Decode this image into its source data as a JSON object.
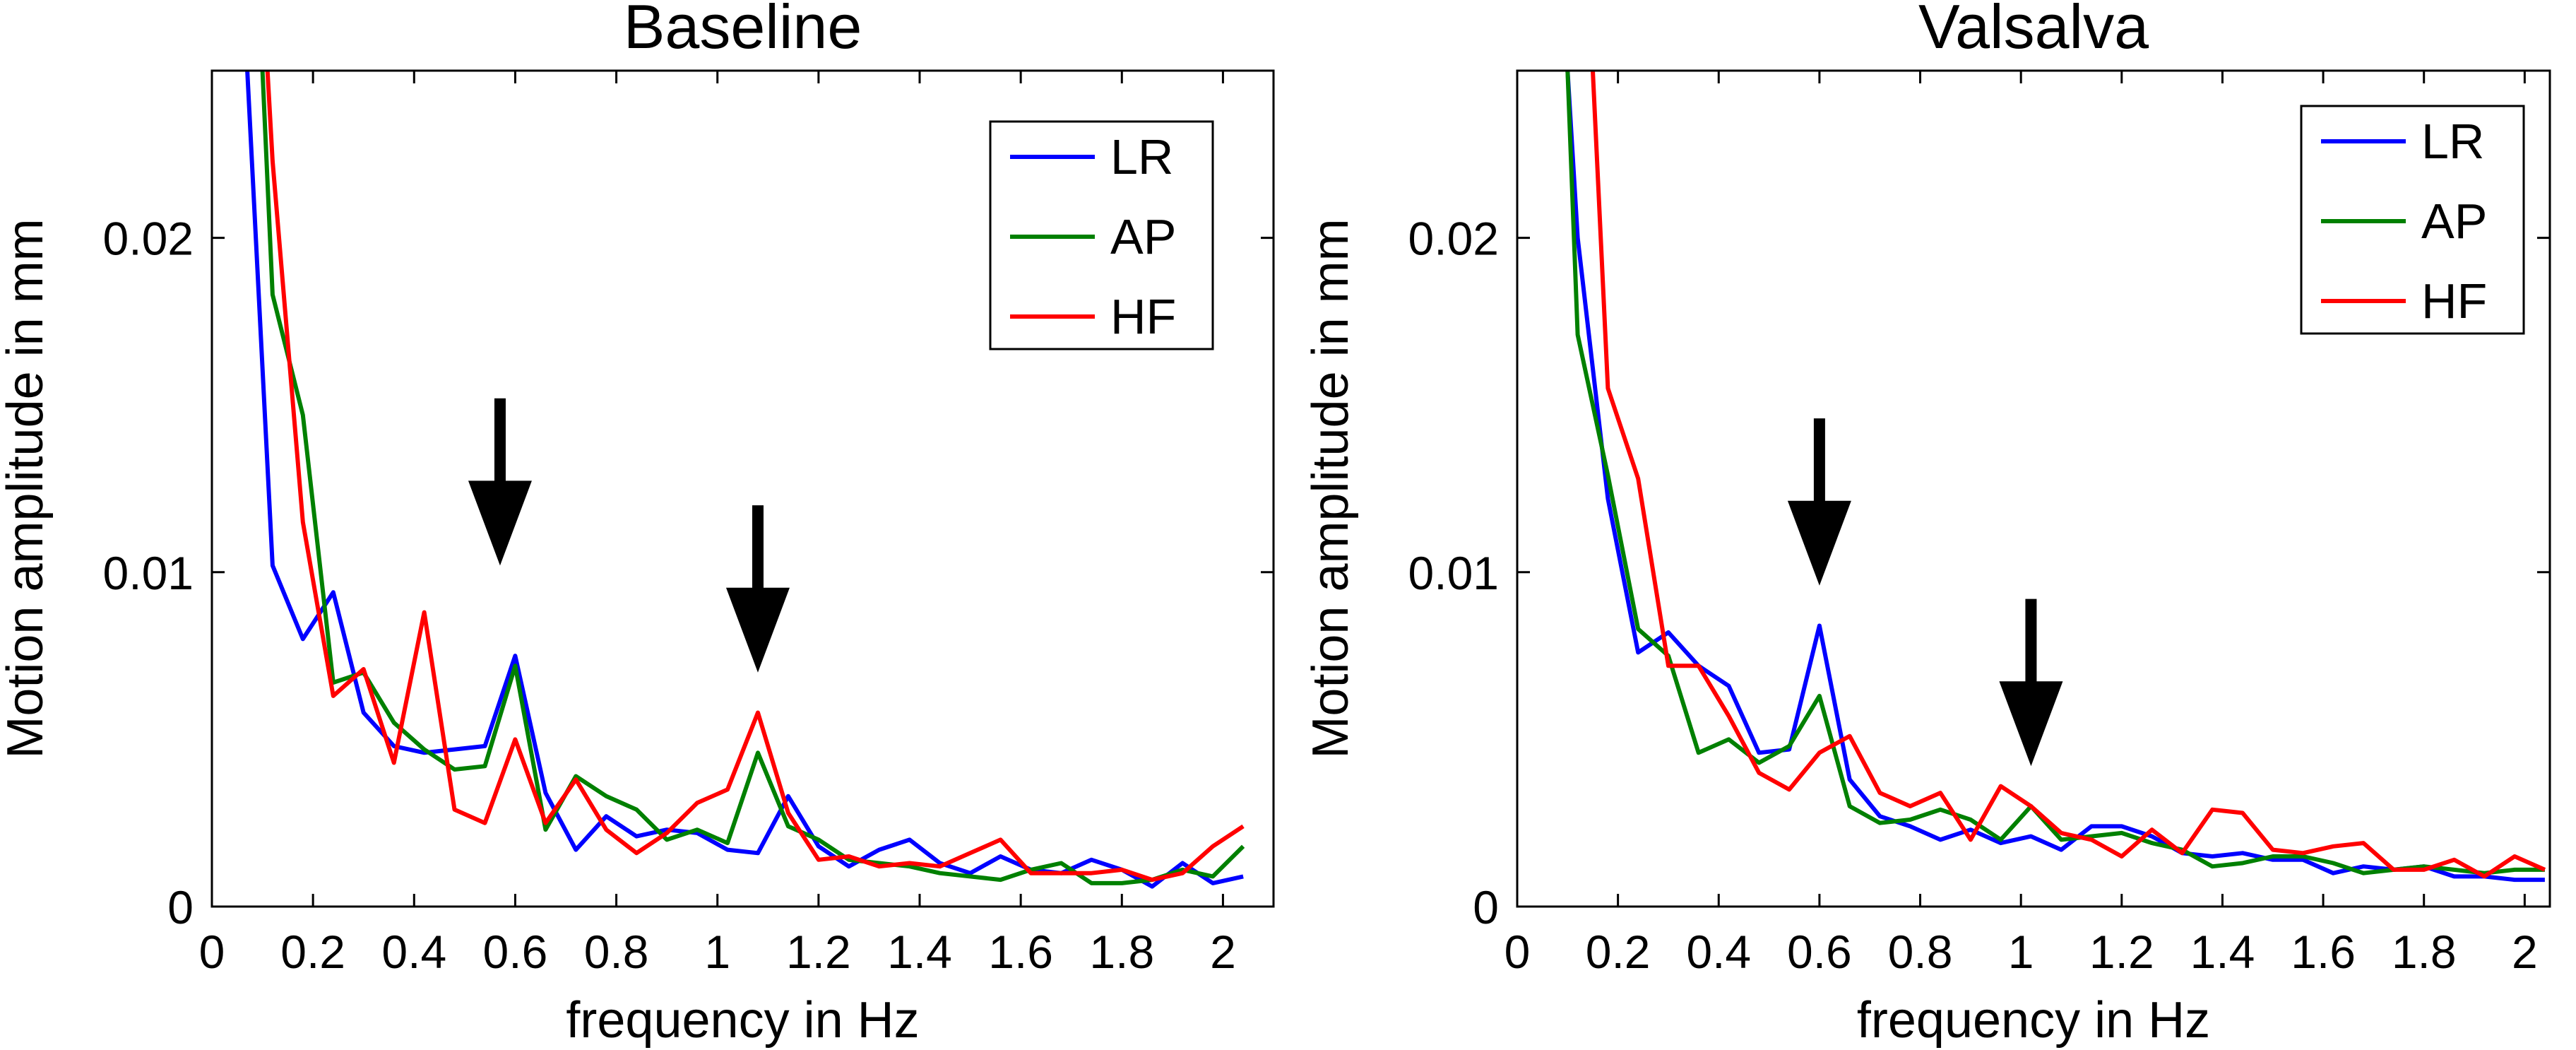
{
  "colors": {
    "LR": "#0000ff",
    "AP": "#008000",
    "HF": "#ff0000",
    "axis": "#000000",
    "arrow": "#000000"
  },
  "chart_data": [
    {
      "type": "line",
      "title": "Baseline",
      "xlabel": "frequency in Hz",
      "ylabel": "Motion amplitude in mm",
      "xlim": [
        0,
        2.1
      ],
      "ylim": [
        0,
        0.025
      ],
      "xticks": [
        0,
        0.2,
        0.4,
        0.6,
        0.8,
        1,
        1.2,
        1.4,
        1.6,
        1.8,
        2
      ],
      "xtick_labels": [
        "0",
        "0.2",
        "0.4",
        "0.6",
        "0.8",
        "1",
        "1.2",
        "1.4",
        "1.6",
        "1.8",
        "2"
      ],
      "yticks": [
        0,
        0.01,
        0.02
      ],
      "ytick_labels": [
        "0",
        "0.01",
        "0.02"
      ],
      "grid": false,
      "legend": "top-right",
      "arrows": [
        {
          "x": 0.57,
          "y_top": 0.0152,
          "y_tip": 0.0102
        },
        {
          "x": 1.08,
          "y_top": 0.012,
          "y_tip": 0.007
        }
      ],
      "series": [
        {
          "name": "LR",
          "x": [
            0.07,
            0.12,
            0.18,
            0.24,
            0.3,
            0.36,
            0.42,
            0.48,
            0.54,
            0.6,
            0.66,
            0.72,
            0.78,
            0.84,
            0.9,
            0.96,
            1.02,
            1.08,
            1.14,
            1.2,
            1.26,
            1.32,
            1.38,
            1.44,
            1.5,
            1.56,
            1.62,
            1.68,
            1.74,
            1.8,
            1.86,
            1.92,
            1.98,
            2.04
          ],
          "values": [
            0.025,
            0.0102,
            0.008,
            0.0094,
            0.0058,
            0.0048,
            0.0046,
            0.0047,
            0.0048,
            0.0075,
            0.0034,
            0.0017,
            0.0027,
            0.0021,
            0.0023,
            0.0022,
            0.0017,
            0.0016,
            0.0033,
            0.0018,
            0.0012,
            0.0017,
            0.002,
            0.0013,
            0.001,
            0.0015,
            0.0011,
            0.001,
            0.0014,
            0.0011,
            0.0006,
            0.0013,
            0.0007,
            0.0009
          ]
        },
        {
          "name": "AP",
          "x": [
            0.1,
            0.12,
            0.18,
            0.24,
            0.3,
            0.36,
            0.42,
            0.48,
            0.54,
            0.6,
            0.66,
            0.72,
            0.78,
            0.84,
            0.9,
            0.96,
            1.02,
            1.08,
            1.14,
            1.2,
            1.26,
            1.32,
            1.38,
            1.44,
            1.5,
            1.56,
            1.62,
            1.68,
            1.74,
            1.8,
            1.86,
            1.92,
            1.98,
            2.04
          ],
          "values": [
            0.025,
            0.0183,
            0.0147,
            0.0067,
            0.007,
            0.0055,
            0.0047,
            0.0041,
            0.0042,
            0.0072,
            0.0023,
            0.0039,
            0.0033,
            0.0029,
            0.002,
            0.0023,
            0.0019,
            0.0046,
            0.0024,
            0.002,
            0.0014,
            0.0013,
            0.0012,
            0.001,
            0.0009,
            0.0008,
            0.0011,
            0.0013,
            0.0007,
            0.0007,
            0.0008,
            0.0011,
            0.0009,
            0.0018
          ]
        },
        {
          "name": "HF",
          "x": [
            0.11,
            0.12,
            0.18,
            0.24,
            0.3,
            0.36,
            0.42,
            0.48,
            0.54,
            0.6,
            0.66,
            0.72,
            0.78,
            0.84,
            0.9,
            0.96,
            1.02,
            1.08,
            1.14,
            1.2,
            1.26,
            1.32,
            1.38,
            1.44,
            1.5,
            1.56,
            1.62,
            1.68,
            1.74,
            1.8,
            1.86,
            1.92,
            1.98,
            2.04
          ],
          "values": [
            0.025,
            0.0223,
            0.0115,
            0.0063,
            0.0071,
            0.0043,
            0.0088,
            0.0029,
            0.0025,
            0.005,
            0.0025,
            0.0038,
            0.0023,
            0.0016,
            0.0022,
            0.0031,
            0.0035,
            0.0058,
            0.0028,
            0.0014,
            0.0015,
            0.0012,
            0.0013,
            0.0012,
            0.0016,
            0.002,
            0.001,
            0.001,
            0.001,
            0.0011,
            0.0008,
            0.001,
            0.0018,
            0.0024
          ]
        }
      ]
    },
    {
      "type": "line",
      "title": "Valsalva",
      "xlabel": "frequency in Hz",
      "ylabel": "Motion amplitude in mm",
      "xlim": [
        0,
        2.05
      ],
      "ylim": [
        0,
        0.025
      ],
      "xticks": [
        0,
        0.2,
        0.4,
        0.6,
        0.8,
        1,
        1.2,
        1.4,
        1.6,
        1.8,
        2
      ],
      "xtick_labels": [
        "0",
        "0.2",
        "0.4",
        "0.6",
        "0.8",
        "1",
        "1.2",
        "1.4",
        "1.6",
        "1.8",
        "2"
      ],
      "yticks": [
        0,
        0.01,
        0.02
      ],
      "ytick_labels": [
        "0",
        "0.01",
        "0.02"
      ],
      "grid": false,
      "legend": "top-right",
      "arrows": [
        {
          "x": 0.6,
          "y_top": 0.0146,
          "y_tip": 0.0096
        },
        {
          "x": 1.02,
          "y_top": 0.0092,
          "y_tip": 0.0042
        }
      ],
      "series": [
        {
          "name": "LR",
          "x": [
            0.1,
            0.12,
            0.18,
            0.24,
            0.3,
            0.36,
            0.42,
            0.48,
            0.54,
            0.6,
            0.66,
            0.72,
            0.78,
            0.84,
            0.9,
            0.96,
            1.02,
            1.08,
            1.14,
            1.2,
            1.26,
            1.32,
            1.38,
            1.44,
            1.5,
            1.56,
            1.62,
            1.68,
            1.74,
            1.8,
            1.86,
            1.92,
            1.98,
            2.04
          ],
          "values": [
            0.025,
            0.02,
            0.0122,
            0.0076,
            0.0082,
            0.0072,
            0.0066,
            0.0046,
            0.0047,
            0.0084,
            0.0038,
            0.0027,
            0.0024,
            0.002,
            0.0023,
            0.0019,
            0.0021,
            0.0017,
            0.0024,
            0.0024,
            0.0021,
            0.0016,
            0.0015,
            0.0016,
            0.0014,
            0.0014,
            0.001,
            0.0012,
            0.0011,
            0.0012,
            0.0009,
            0.0009,
            0.0008,
            0.0008
          ]
        },
        {
          "name": "AP",
          "x": [
            0.1,
            0.12,
            0.18,
            0.24,
            0.3,
            0.36,
            0.42,
            0.48,
            0.54,
            0.6,
            0.66,
            0.72,
            0.78,
            0.84,
            0.9,
            0.96,
            1.02,
            1.08,
            1.14,
            1.2,
            1.26,
            1.32,
            1.38,
            1.44,
            1.5,
            1.56,
            1.62,
            1.68,
            1.74,
            1.8,
            1.86,
            1.92,
            1.98,
            2.04
          ],
          "values": [
            0.025,
            0.0171,
            0.0129,
            0.0083,
            0.0075,
            0.0046,
            0.005,
            0.0043,
            0.0048,
            0.0063,
            0.003,
            0.0025,
            0.0026,
            0.0029,
            0.0026,
            0.002,
            0.003,
            0.002,
            0.0021,
            0.0022,
            0.0019,
            0.0017,
            0.0012,
            0.0013,
            0.0015,
            0.0015,
            0.0013,
            0.001,
            0.0011,
            0.0012,
            0.0011,
            0.001,
            0.0011,
            0.0011
          ]
        },
        {
          "name": "HF",
          "x": [
            0.15,
            0.18,
            0.24,
            0.3,
            0.36,
            0.42,
            0.48,
            0.54,
            0.6,
            0.66,
            0.72,
            0.78,
            0.84,
            0.9,
            0.96,
            1.02,
            1.08,
            1.14,
            1.2,
            1.26,
            1.32,
            1.38,
            1.44,
            1.5,
            1.56,
            1.62,
            1.68,
            1.74,
            1.8,
            1.86,
            1.92,
            1.98,
            2.04
          ],
          "values": [
            0.025,
            0.0155,
            0.0128,
            0.0072,
            0.0072,
            0.0057,
            0.004,
            0.0035,
            0.0046,
            0.0051,
            0.0034,
            0.003,
            0.0034,
            0.002,
            0.0036,
            0.003,
            0.0022,
            0.002,
            0.0015,
            0.0023,
            0.0016,
            0.0029,
            0.0028,
            0.0017,
            0.0016,
            0.0018,
            0.0019,
            0.0011,
            0.0011,
            0.0014,
            0.0009,
            0.0015,
            0.0011
          ]
        }
      ]
    }
  ]
}
